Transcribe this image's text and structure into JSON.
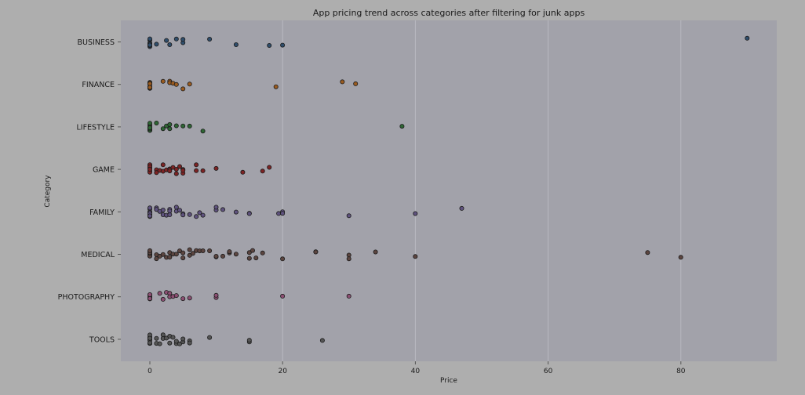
{
  "chart_data": {
    "type": "scatter",
    "title": "App pricing trend across categories after filtering for junk apps",
    "xlabel": "Price",
    "ylabel": "Category",
    "xlim": [
      -4.5,
      94.5
    ],
    "xticks": [
      0,
      20,
      40,
      60,
      80
    ],
    "grid": true,
    "categories": [
      "BUSINESS",
      "FINANCE",
      "LIFESTYLE",
      "GAME",
      "FAMILY",
      "MEDICAL",
      "PHOTOGRAPHY",
      "TOOLS"
    ],
    "colors": {
      "BUSINESS": "#2f4d6b",
      "FINANCE": "#9a5b1f",
      "LIFESTYLE": "#2e6634",
      "GAME": "#7d2324",
      "FAMILY": "#5f527e",
      "MEDICAL": "#5c4540",
      "PHOTOGRAPHY": "#8c4f73",
      "TOOLS": "#555555"
    },
    "series": [
      {
        "category": "BUSINESS",
        "values": [
          0,
          0,
          0,
          0,
          0,
          0,
          0,
          0,
          0,
          0,
          0.99,
          2.49,
          2.99,
          3.99,
          4.99,
          4.99,
          8.99,
          12.99,
          17.99,
          19.99,
          89.99
        ]
      },
      {
        "category": "FINANCE",
        "values": [
          0,
          0,
          0,
          0,
          0,
          0,
          0,
          0,
          0,
          0,
          1.99,
          2.99,
          2.99,
          3.49,
          3.99,
          4.99,
          5.99,
          18.99,
          28.99,
          30.99
        ]
      },
      {
        "category": "LIFESTYLE",
        "values": [
          0,
          0,
          0,
          0,
          0,
          0,
          0,
          0,
          0.99,
          1.99,
          2.49,
          2.99,
          2.99,
          3.99,
          4.99,
          5.99,
          7.99,
          37.99
        ]
      },
      {
        "category": "GAME",
        "values": [
          0,
          0,
          0,
          0,
          0,
          0,
          0,
          0,
          0,
          0,
          0,
          0.99,
          0.99,
          1.49,
          1.99,
          1.99,
          2.49,
          2.99,
          2.99,
          2.99,
          3.49,
          3.99,
          3.99,
          4.49,
          4.99,
          4.99,
          4.99,
          6.99,
          6.99,
          7.99,
          9.99,
          13.99,
          16.99,
          17.99
        ]
      },
      {
        "category": "FAMILY",
        "values": [
          0,
          0,
          0,
          0,
          0,
          0,
          0,
          0,
          0,
          0,
          0,
          0.99,
          0.99,
          1.49,
          1.99,
          1.99,
          2.49,
          2.99,
          2.99,
          2.99,
          3.99,
          3.99,
          4.49,
          4.99,
          4.99,
          5.99,
          6.99,
          7.49,
          7.99,
          9.99,
          9.99,
          10.99,
          12.99,
          14.99,
          14.99,
          19.4,
          19.99,
          19.99,
          29.99,
          39.99,
          46.99
        ]
      },
      {
        "category": "MEDICAL",
        "values": [
          0,
          0,
          0,
          0,
          0,
          0,
          0,
          0,
          0,
          0,
          0,
          0.99,
          0.99,
          1.49,
          1.99,
          2.49,
          2.99,
          2.99,
          3.49,
          3.99,
          4.49,
          4.99,
          4.99,
          5.99,
          5.99,
          6.49,
          6.99,
          7.49,
          7.99,
          8.99,
          9.99,
          9.99,
          10.99,
          11.99,
          11.99,
          12.99,
          14.99,
          14.99,
          15.49,
          15.99,
          16.99,
          19.99,
          24.99,
          24.99,
          29.99,
          29.99,
          33.99,
          39.99,
          74.99,
          79.99
        ]
      },
      {
        "category": "PHOTOGRAPHY",
        "values": [
          0,
          0,
          0,
          0,
          0,
          0,
          0,
          1.49,
          1.99,
          2.49,
          2.99,
          2.99,
          3.49,
          3.99,
          4.99,
          5.99,
          9.99,
          9.99,
          19.99,
          29.99
        ]
      },
      {
        "category": "TOOLS",
        "values": [
          0,
          0,
          0,
          0,
          0,
          0,
          0,
          0,
          0,
          0,
          0.99,
          0.99,
          1.49,
          1.99,
          1.99,
          2.49,
          2.99,
          2.99,
          3.49,
          3.99,
          3.99,
          4.49,
          4.99,
          4.99,
          5.99,
          5.99,
          8.99,
          14.99,
          14.99,
          25.99
        ]
      }
    ]
  }
}
